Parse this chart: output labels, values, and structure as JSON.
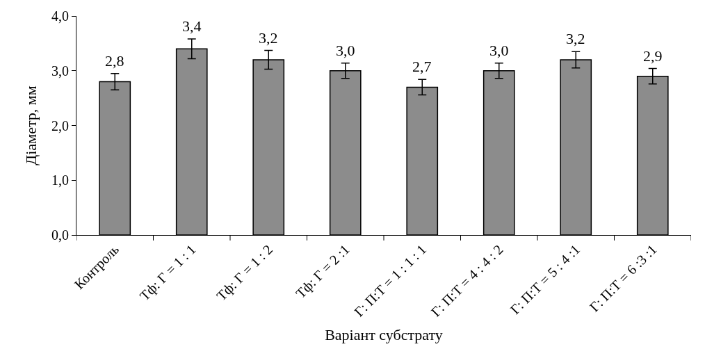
{
  "chart_data": {
    "type": "bar",
    "xlabel": "Варіант субстрату",
    "ylabel": "Діаметр, мм",
    "categories": [
      "Контроль",
      "Тф: Г = 1 : 1",
      "Тф: Г = 1 : 2",
      "Тф: Г = 2 :1",
      "Г: П:Т = 1 : 1 : 1",
      "Г: П:Т = 4 : 4 : 2",
      "Г: П:Т = 5 : 4 :1",
      "Г: П:Т = 6 :3 :1"
    ],
    "values": [
      2.8,
      3.4,
      3.2,
      3.0,
      2.7,
      3.0,
      3.2,
      2.9
    ],
    "value_labels": [
      "2,8",
      "3,4",
      "3,2",
      "3,0",
      "2,7",
      "3,0",
      "3,2",
      "2,9"
    ],
    "errors": [
      0.15,
      0.18,
      0.17,
      0.14,
      0.14,
      0.14,
      0.15,
      0.14
    ],
    "color": "#8c8c8c",
    "ylim": [
      0,
      4
    ],
    "yticks": [
      {
        "value": 0,
        "label": "0,0"
      },
      {
        "value": 1,
        "label": "1,0"
      },
      {
        "value": 2,
        "label": "2,0"
      },
      {
        "value": 3,
        "label": "3,0"
      },
      {
        "value": 4,
        "label": "4,0"
      }
    ],
    "tick_labels": [
      "x",
      "y"
    ]
  }
}
